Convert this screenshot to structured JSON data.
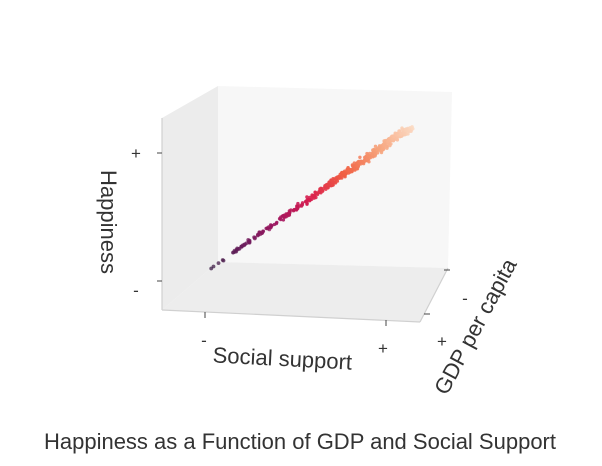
{
  "chart_data": {
    "type": "scatter",
    "projection": "3d",
    "caption": "Happiness as a Function of GDP and Social Support",
    "xlabel": "Social support",
    "ylabel": "GDP per capita",
    "zlabel": "Happiness",
    "x_ticks": [
      "-",
      "+"
    ],
    "y_ticks": [
      "+",
      "-"
    ],
    "z_ticks": [
      "+",
      "-"
    ],
    "xlim": [
      0,
      1
    ],
    "ylim": [
      0,
      1
    ],
    "zlim": [
      0,
      1
    ],
    "grid": false,
    "pane_color": "#f2f2f2",
    "colormap": "rocket",
    "colormap_stops": [
      "#3b1e45",
      "#6a1c5c",
      "#a0155f",
      "#d91e4e",
      "#f15f43",
      "#f6a27a",
      "#fbd9c2"
    ],
    "n_points": 480,
    "trend": "Happiness rises linearly with both GDP per capita and Social support; points are colored by Happiness from dark purple (low) to light peach (high)."
  }
}
